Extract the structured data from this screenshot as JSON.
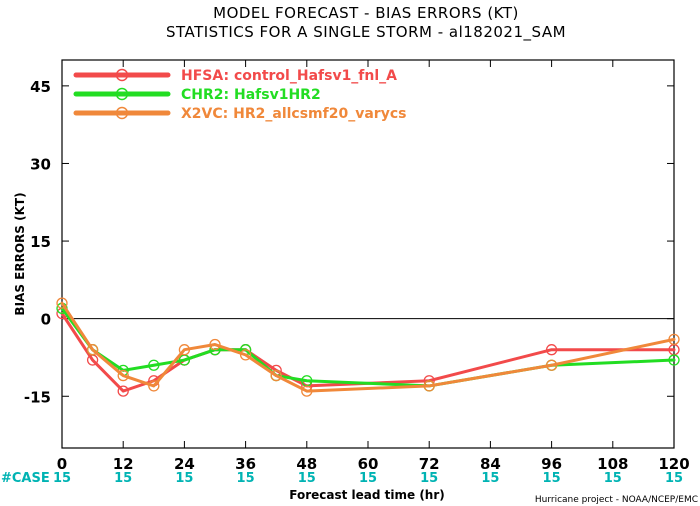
{
  "chart_data": {
    "type": "line",
    "title": "MODEL FORECAST - BIAS ERRORS (KT)",
    "subtitle": "STATISTICS FOR A SINGLE STORM - al182021_SAM",
    "xlabel": "Forecast lead time (hr)",
    "ylabel": "BIAS ERRORS (KT)",
    "xlim": [
      0,
      120
    ],
    "ylim": [
      -25,
      50
    ],
    "x_ticks": [
      0,
      12,
      24,
      36,
      48,
      60,
      72,
      84,
      96,
      108,
      120
    ],
    "x_tick_labels": [
      "0",
      "12",
      "24",
      "36",
      "48",
      "60",
      "72",
      "84",
      "96",
      "108",
      "120"
    ],
    "y_ticks": [
      -15,
      0,
      15,
      30,
      45
    ],
    "y_tick_labels": [
      "-15",
      "0",
      "15",
      "30",
      "45"
    ],
    "zero_line": true,
    "legend_position": "top-left",
    "case_label": "#CASE",
    "case_counts": [
      "15",
      "15",
      "15",
      "15",
      "15",
      "15",
      "15",
      "15",
      "15",
      "15",
      "15"
    ],
    "credit": "Hurricane project - NOAA/NCEP/EMC",
    "series": [
      {
        "name": "HFSA",
        "description": "control_Hafsv1_fnl_A",
        "color": "#f24a4a",
        "x": [
          0,
          6,
          12,
          18,
          24,
          30,
          36,
          42,
          48,
          72,
          96,
          120
        ],
        "y": [
          1,
          -8,
          -14,
          -12,
          -8,
          -6,
          -6,
          -10,
          -13,
          -12,
          -6,
          -6
        ]
      },
      {
        "name": "CHR2",
        "description": "Hafsv1HR2",
        "color": "#22dd22",
        "x": [
          0,
          6,
          12,
          18,
          24,
          30,
          36,
          42,
          48,
          72,
          96,
          120
        ],
        "y": [
          2,
          -6,
          -10,
          -9,
          -8,
          -6,
          -6,
          -11,
          -12,
          -13,
          -9,
          -8
        ]
      },
      {
        "name": "X2VC",
        "description": "HR2_allcsmf20_varycs",
        "color": "#f0883a",
        "x": [
          0,
          6,
          12,
          18,
          24,
          30,
          36,
          42,
          48,
          72,
          96,
          120
        ],
        "y": [
          3,
          -6,
          -11,
          -13,
          -6,
          -5,
          -7,
          -11,
          -14,
          -13,
          -9,
          -4
        ]
      }
    ]
  }
}
